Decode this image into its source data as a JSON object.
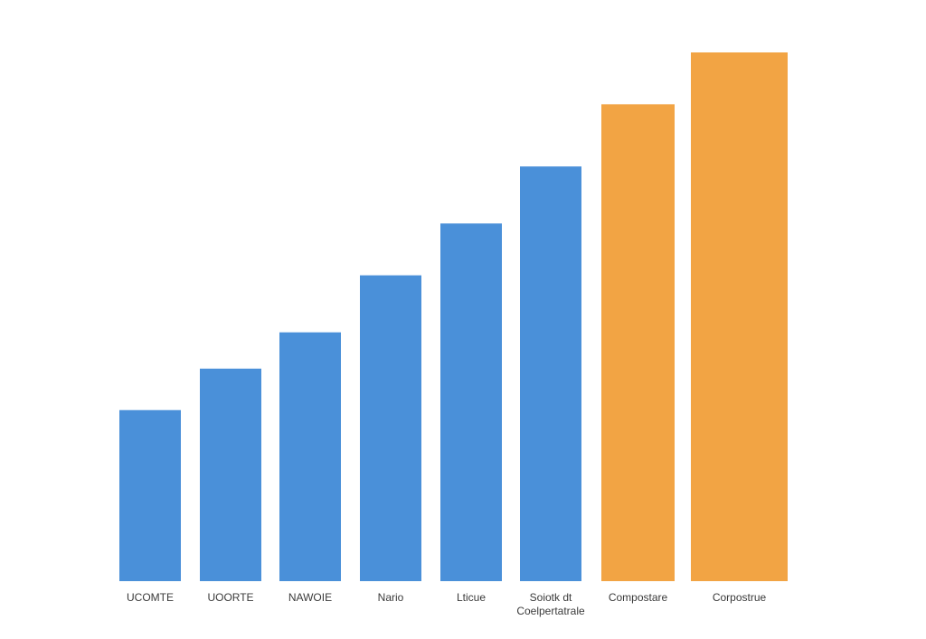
{
  "chart_data": {
    "type": "bar",
    "title": "",
    "xlabel": "",
    "ylabel": "",
    "grid": false,
    "legend": "none",
    "categories": [
      "UCOMTE",
      "UOORTE",
      "NAWOIE",
      "Nario",
      "Lticue",
      "Soiotk dt\nCoelpertatrale",
      "Compostare",
      "Corpostrue"
    ],
    "values": [
      33,
      41,
      48,
      59,
      69,
      80,
      92,
      102
    ],
    "ylim": [
      0,
      110
    ],
    "colors": [
      "#4a90d9",
      "#4a90d9",
      "#4a90d9",
      "#4a90d9",
      "#4a90d9",
      "#4a90d9",
      "#f2a444",
      "#f2a444"
    ]
  }
}
